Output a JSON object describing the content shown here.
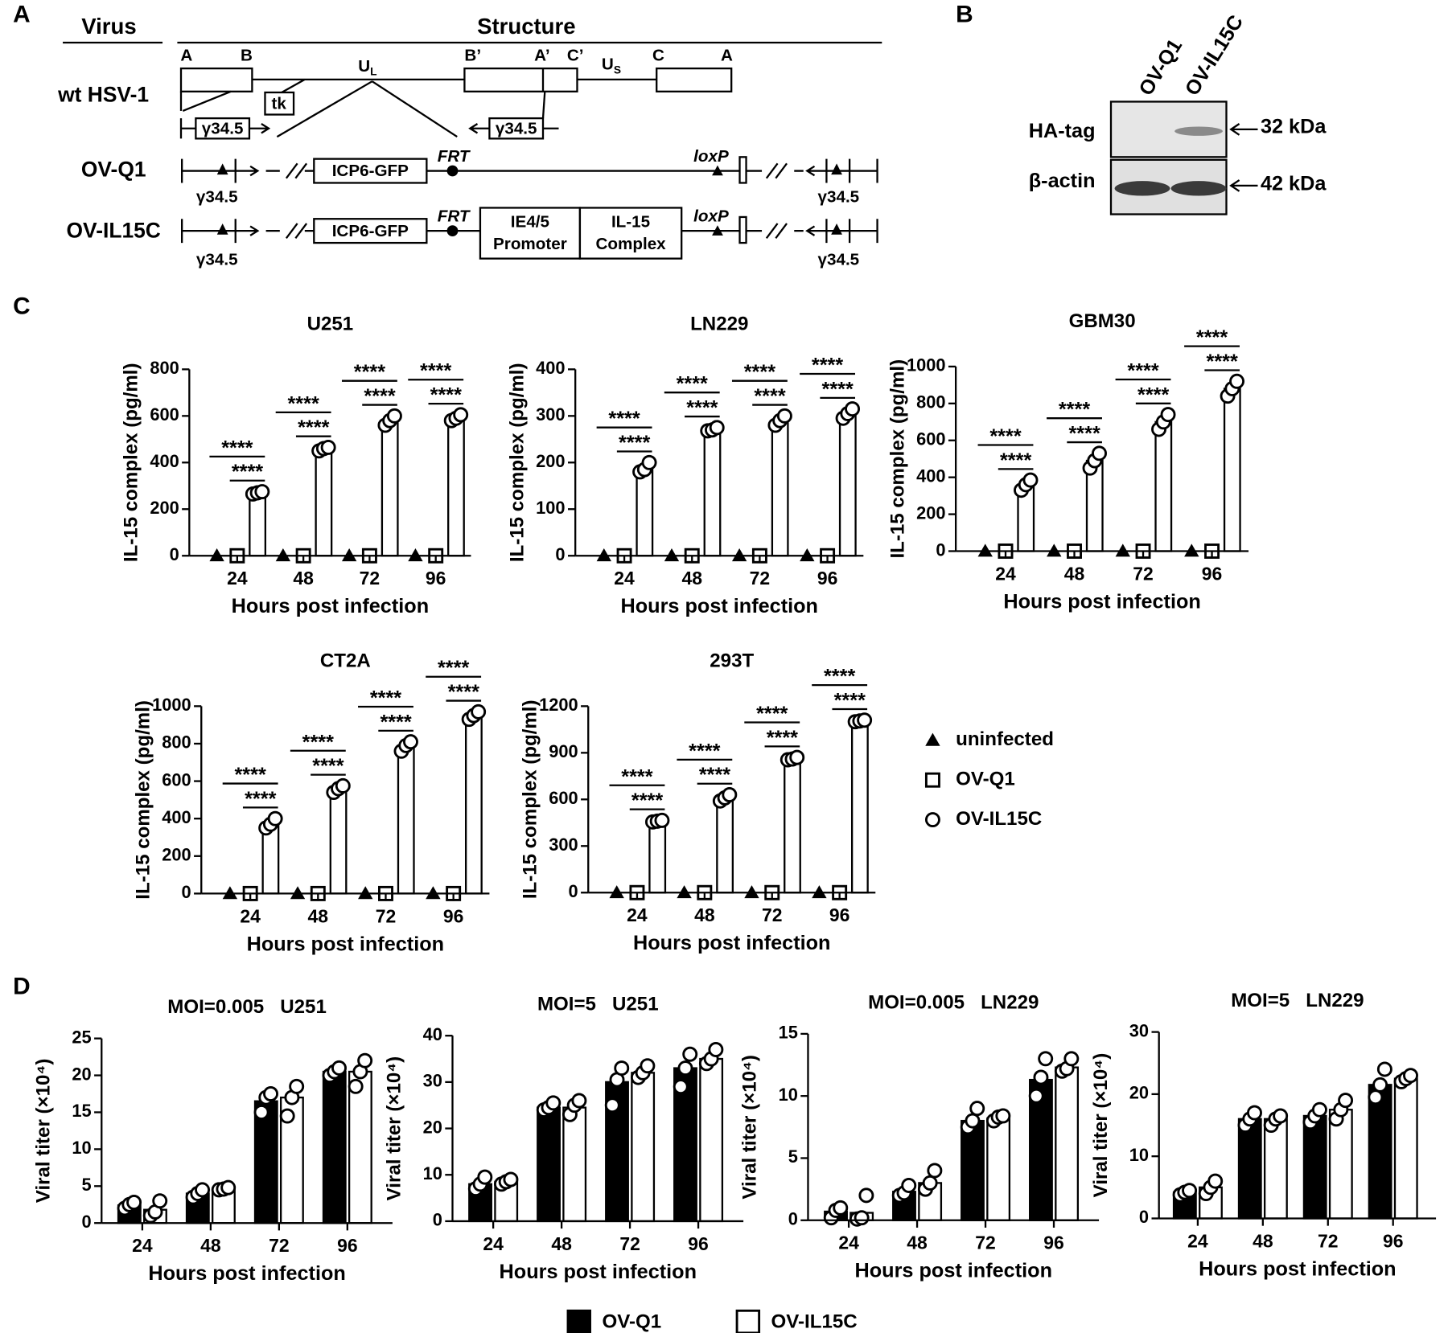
{
  "panel_letters": [
    "A",
    "B",
    "C",
    "D"
  ],
  "diagram": {
    "headers": [
      "Virus",
      "Structure"
    ],
    "rows": [
      "wt HSV-1",
      "OV-Q1",
      "OV-IL15C"
    ],
    "regions": [
      {
        "label": "A"
      },
      {
        "label": "B"
      },
      {
        "label": "U",
        "sub": "L"
      },
      {
        "label": "B’"
      },
      {
        "label": "A’"
      },
      {
        "label": "C’"
      },
      {
        "label": "U",
        "sub": "S"
      },
      {
        "label": "C"
      },
      {
        "label": "A"
      }
    ],
    "tk": "tk",
    "gene": "γ34.5",
    "icp6": "ICP6-GFP",
    "frt": "FRT",
    "loxp": "loxP",
    "promoter": [
      "IE4/5",
      "Promoter"
    ],
    "complex": [
      "IL-15",
      "Complex"
    ]
  },
  "blot": {
    "lanes": [
      "OV-Q1",
      "OV-IL15C"
    ],
    "rows": [
      "HA-tag",
      "β-actin"
    ],
    "sizes": [
      "32 kDa",
      "42 kDa"
    ]
  },
  "chart_data": [
    {
      "type": "bar",
      "title": "U251",
      "xlabel": "Hours post infection",
      "ylabel": "IL-15 complex (pg/ml)",
      "categories": [
        "24",
        "48",
        "72",
        "96"
      ],
      "ylim": [
        0,
        800
      ],
      "yticks": [
        0,
        200,
        400,
        600,
        800
      ],
      "series": [
        {
          "name": "uninfected",
          "color": "#ffffff",
          "marker": "triangle",
          "values": [
            0,
            0,
            0,
            0
          ]
        },
        {
          "name": "OV-Q1",
          "color": "#ffffff",
          "marker": "square",
          "values": [
            0,
            0,
            0,
            0
          ]
        },
        {
          "name": "OV-IL15C",
          "color": "#ffffff",
          "marker": "circle",
          "values": [
            270,
            460,
            580,
            590
          ],
          "replicates": [
            [
              265,
              270,
              275
            ],
            [
              450,
              460,
              465
            ],
            [
              560,
              580,
              600
            ],
            [
              580,
              590,
              605
            ]
          ]
        }
      ],
      "significance": [
        [
          "****",
          "****"
        ],
        [
          "****",
          "****"
        ],
        [
          "****",
          "****"
        ],
        [
          "****",
          "****"
        ]
      ]
    },
    {
      "type": "bar",
      "title": "LN229",
      "xlabel": "Hours post infection",
      "ylabel": "IL-15 complex (pg/ml)",
      "categories": [
        "24",
        "48",
        "72",
        "96"
      ],
      "ylim": [
        0,
        400
      ],
      "yticks": [
        0,
        100,
        200,
        300,
        400
      ],
      "series": [
        {
          "name": "uninfected",
          "color": "#ffffff",
          "marker": "triangle",
          "values": [
            0,
            0,
            0,
            0
          ]
        },
        {
          "name": "OV-Q1",
          "color": "#ffffff",
          "marker": "square",
          "values": [
            0,
            0,
            0,
            0
          ]
        },
        {
          "name": "OV-IL15C",
          "color": "#ffffff",
          "marker": "circle",
          "values": [
            190,
            270,
            290,
            305
          ],
          "replicates": [
            [
              180,
              185,
              200
            ],
            [
              268,
              270,
              275
            ],
            [
              280,
              290,
              300
            ],
            [
              295,
              305,
              315
            ]
          ]
        }
      ],
      "significance": [
        [
          "****",
          "****"
        ],
        [
          "****",
          "****"
        ],
        [
          "****",
          "****"
        ],
        [
          "****",
          "****"
        ]
      ]
    },
    {
      "type": "bar",
      "title": "GBM30",
      "xlabel": "Hours post infection",
      "ylabel": "IL-15 complex (pg/ml)",
      "categories": [
        "24",
        "48",
        "72",
        "96"
      ],
      "ylim": [
        0,
        1000
      ],
      "yticks": [
        0,
        200,
        400,
        600,
        800,
        1000
      ],
      "series": [
        {
          "name": "uninfected",
          "color": "#ffffff",
          "marker": "triangle",
          "values": [
            0,
            0,
            0,
            0
          ]
        },
        {
          "name": "OV-Q1",
          "color": "#ffffff",
          "marker": "square",
          "values": [
            0,
            0,
            0,
            0
          ]
        },
        {
          "name": "OV-IL15C",
          "color": "#ffffff",
          "marker": "circle",
          "values": [
            360,
            490,
            700,
            880
          ],
          "replicates": [
            [
              330,
              360,
              385
            ],
            [
              450,
              490,
              530
            ],
            [
              660,
              700,
              740
            ],
            [
              840,
              880,
              920
            ]
          ]
        }
      ],
      "significance": [
        [
          "****",
          "****"
        ],
        [
          "****",
          "****"
        ],
        [
          "****",
          "****"
        ],
        [
          "****",
          "****"
        ]
      ]
    },
    {
      "type": "bar",
      "title": "CT2A",
      "xlabel": "Hours post infection",
      "ylabel": "IL-15 complex (pg/ml)",
      "categories": [
        "24",
        "48",
        "72",
        "96"
      ],
      "ylim": [
        0,
        1000
      ],
      "yticks": [
        0,
        200,
        400,
        600,
        800,
        1000
      ],
      "series": [
        {
          "name": "uninfected",
          "color": "#ffffff",
          "marker": "triangle",
          "values": [
            0,
            0,
            0,
            0
          ]
        },
        {
          "name": "OV-Q1",
          "color": "#ffffff",
          "marker": "square",
          "values": [
            0,
            0,
            0,
            0
          ]
        },
        {
          "name": "OV-IL15C",
          "color": "#ffffff",
          "marker": "circle",
          "values": [
            370,
            560,
            790,
            950
          ],
          "replicates": [
            [
              350,
              370,
              400
            ],
            [
              540,
              560,
              575
            ],
            [
              760,
              790,
              810
            ],
            [
              930,
              950,
              970
            ]
          ]
        }
      ],
      "significance": [
        [
          "****",
          "****"
        ],
        [
          "****",
          "****"
        ],
        [
          "****",
          "****"
        ],
        [
          "****",
          "****"
        ]
      ]
    },
    {
      "type": "bar",
      "title": "293T",
      "xlabel": "Hours post infection",
      "ylabel": "IL-15 complex (pg/ml)",
      "categories": [
        "24",
        "48",
        "72",
        "96"
      ],
      "ylim": [
        0,
        1200
      ],
      "yticks": [
        0,
        300,
        600,
        900,
        1200
      ],
      "series": [
        {
          "name": "uninfected",
          "color": "#ffffff",
          "marker": "triangle",
          "values": [
            0,
            0,
            0,
            0
          ]
        },
        {
          "name": "OV-Q1",
          "color": "#ffffff",
          "marker": "square",
          "values": [
            0,
            0,
            0,
            0
          ]
        },
        {
          "name": "OV-IL15C",
          "color": "#ffffff",
          "marker": "circle",
          "values": [
            460,
            610,
            860,
            1105
          ],
          "replicates": [
            [
              455,
              460,
              465
            ],
            [
              590,
              610,
              630
            ],
            [
              855,
              860,
              870
            ],
            [
              1100,
              1105,
              1110
            ]
          ]
        }
      ],
      "significance": [
        [
          "****",
          "****"
        ],
        [
          "****",
          "****"
        ],
        [
          "****",
          "****"
        ],
        [
          "****",
          "****"
        ]
      ]
    },
    {
      "type": "bar",
      "title": "MOI=0.005   U251",
      "xlabel": "Hours post infection",
      "ylabel": "Viral titer (×10⁴)",
      "categories": [
        "24",
        "48",
        "72",
        "96"
      ],
      "ylim": [
        0,
        25
      ],
      "yticks": [
        0,
        5,
        10,
        15,
        20,
        25
      ],
      "series": [
        {
          "name": "OV-Q1",
          "color": "#000000",
          "values": [
            2.4,
            4,
            16.5,
            20.5
          ],
          "replicates": [
            [
              2,
              2.5,
              2.8
            ],
            [
              3.5,
              4,
              4.5
            ],
            [
              15,
              17,
              17.5
            ],
            [
              20,
              20.5,
              21
            ]
          ]
        },
        {
          "name": "OV-IL15C",
          "color": "#ffffff",
          "values": [
            1.8,
            4.5,
            17,
            20.5
          ],
          "replicates": [
            [
              1,
              1.5,
              3
            ],
            [
              4.5,
              4.6,
              4.8
            ],
            [
              14.5,
              17,
              18.5
            ],
            [
              18.5,
              20.5,
              22
            ]
          ]
        }
      ]
    },
    {
      "type": "bar",
      "title": "MOI=5   U251",
      "xlabel": "Hours post infection",
      "ylabel": "Viral titer (×10⁴)",
      "categories": [
        "24",
        "48",
        "72",
        "96"
      ],
      "ylim": [
        0,
        40
      ],
      "yticks": [
        0,
        10,
        20,
        30,
        40
      ],
      "series": [
        {
          "name": "OV-Q1",
          "color": "#000000",
          "values": [
            8,
            24.5,
            30,
            33
          ],
          "replicates": [
            [
              7,
              8,
              9.5
            ],
            [
              24,
              24.5,
              25.5
            ],
            [
              25,
              30.5,
              33
            ],
            [
              29,
              33,
              36
            ]
          ]
        },
        {
          "name": "OV-IL15C",
          "color": "#ffffff",
          "values": [
            8.5,
            24.5,
            32,
            35
          ],
          "replicates": [
            [
              8,
              8.5,
              9
            ],
            [
              23,
              25,
              26
            ],
            [
              31,
              32,
              33.5
            ],
            [
              34,
              35,
              37
            ]
          ]
        }
      ]
    },
    {
      "type": "bar",
      "title": "MOI=0.005   LN229",
      "xlabel": "Hours post infection",
      "ylabel": "Viral titer (×10⁴)",
      "categories": [
        "24",
        "48",
        "72",
        "96"
      ],
      "ylim": [
        0,
        15
      ],
      "yticks": [
        0,
        5,
        10,
        15
      ],
      "series": [
        {
          "name": "OV-Q1",
          "color": "#000000",
          "values": [
            0.7,
            2.3,
            8,
            11.3
          ],
          "replicates": [
            [
              0.2,
              0.8,
              1
            ],
            [
              2,
              2.2,
              2.8
            ],
            [
              7.5,
              8,
              9
            ],
            [
              10,
              11.5,
              13
            ]
          ]
        },
        {
          "name": "OV-IL15C",
          "color": "#ffffff",
          "values": [
            0.6,
            3,
            8.2,
            12.3
          ],
          "replicates": [
            [
              0.1,
              0.2,
              2
            ],
            [
              2.5,
              3,
              4
            ],
            [
              8,
              8.3,
              8.4
            ],
            [
              12,
              12.2,
              13
            ]
          ]
        }
      ]
    },
    {
      "type": "bar",
      "title": "MOI=5   LN229",
      "xlabel": "Hours post infection",
      "ylabel": "Viral titer (×10⁴)",
      "categories": [
        "24",
        "48",
        "72",
        "96"
      ],
      "ylim": [
        0,
        30
      ],
      "yticks": [
        0,
        10,
        20,
        30
      ],
      "series": [
        {
          "name": "OV-Q1",
          "color": "#000000",
          "values": [
            4.2,
            16,
            16.5,
            21.5
          ],
          "replicates": [
            [
              3.8,
              4.2,
              4.5
            ],
            [
              15,
              16,
              17
            ],
            [
              15.5,
              16.5,
              17.5
            ],
            [
              19.5,
              21.5,
              24
            ]
          ]
        },
        {
          "name": "OV-IL15C",
          "color": "#ffffff",
          "values": [
            5,
            16,
            17.5,
            22.5
          ],
          "replicates": [
            [
              4,
              5,
              6
            ],
            [
              15,
              16,
              16.5
            ],
            [
              16,
              17.5,
              19
            ],
            [
              22,
              22.5,
              23
            ]
          ]
        }
      ]
    }
  ]
}
